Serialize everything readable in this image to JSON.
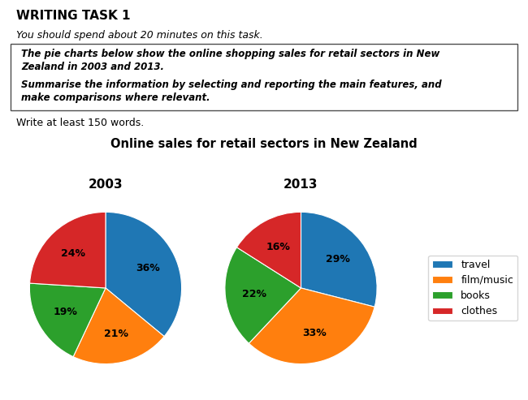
{
  "title": "Online sales for retail sectors in New Zealand",
  "annotations": [
    "WRITING TASK 1",
    "You should spend about 20 minutes on this task.",
    "The pie charts below show the online shopping sales for retail sectors in New\nZealand in 2003 and 2013.",
    "Summarise the information by selecting and reporting the main features, and\nmake comparisons where relevant.",
    "Write at least 150 words."
  ],
  "legend": "center right",
  "chart_data": [
    {
      "type": "pie",
      "title": "2003",
      "categories": [
        "travel",
        "film/music",
        "books",
        "clothes"
      ],
      "values": [
        36,
        21,
        19,
        24
      ],
      "value_labels": [
        "36%",
        "21%",
        "19%",
        "24%"
      ]
    },
    {
      "type": "pie",
      "title": "2013",
      "categories": [
        "travel",
        "film/music",
        "books",
        "clothes"
      ],
      "values": [
        29,
        33,
        22,
        16
      ],
      "value_labels": [
        "29%",
        "33%",
        "22%",
        "16%"
      ]
    }
  ]
}
